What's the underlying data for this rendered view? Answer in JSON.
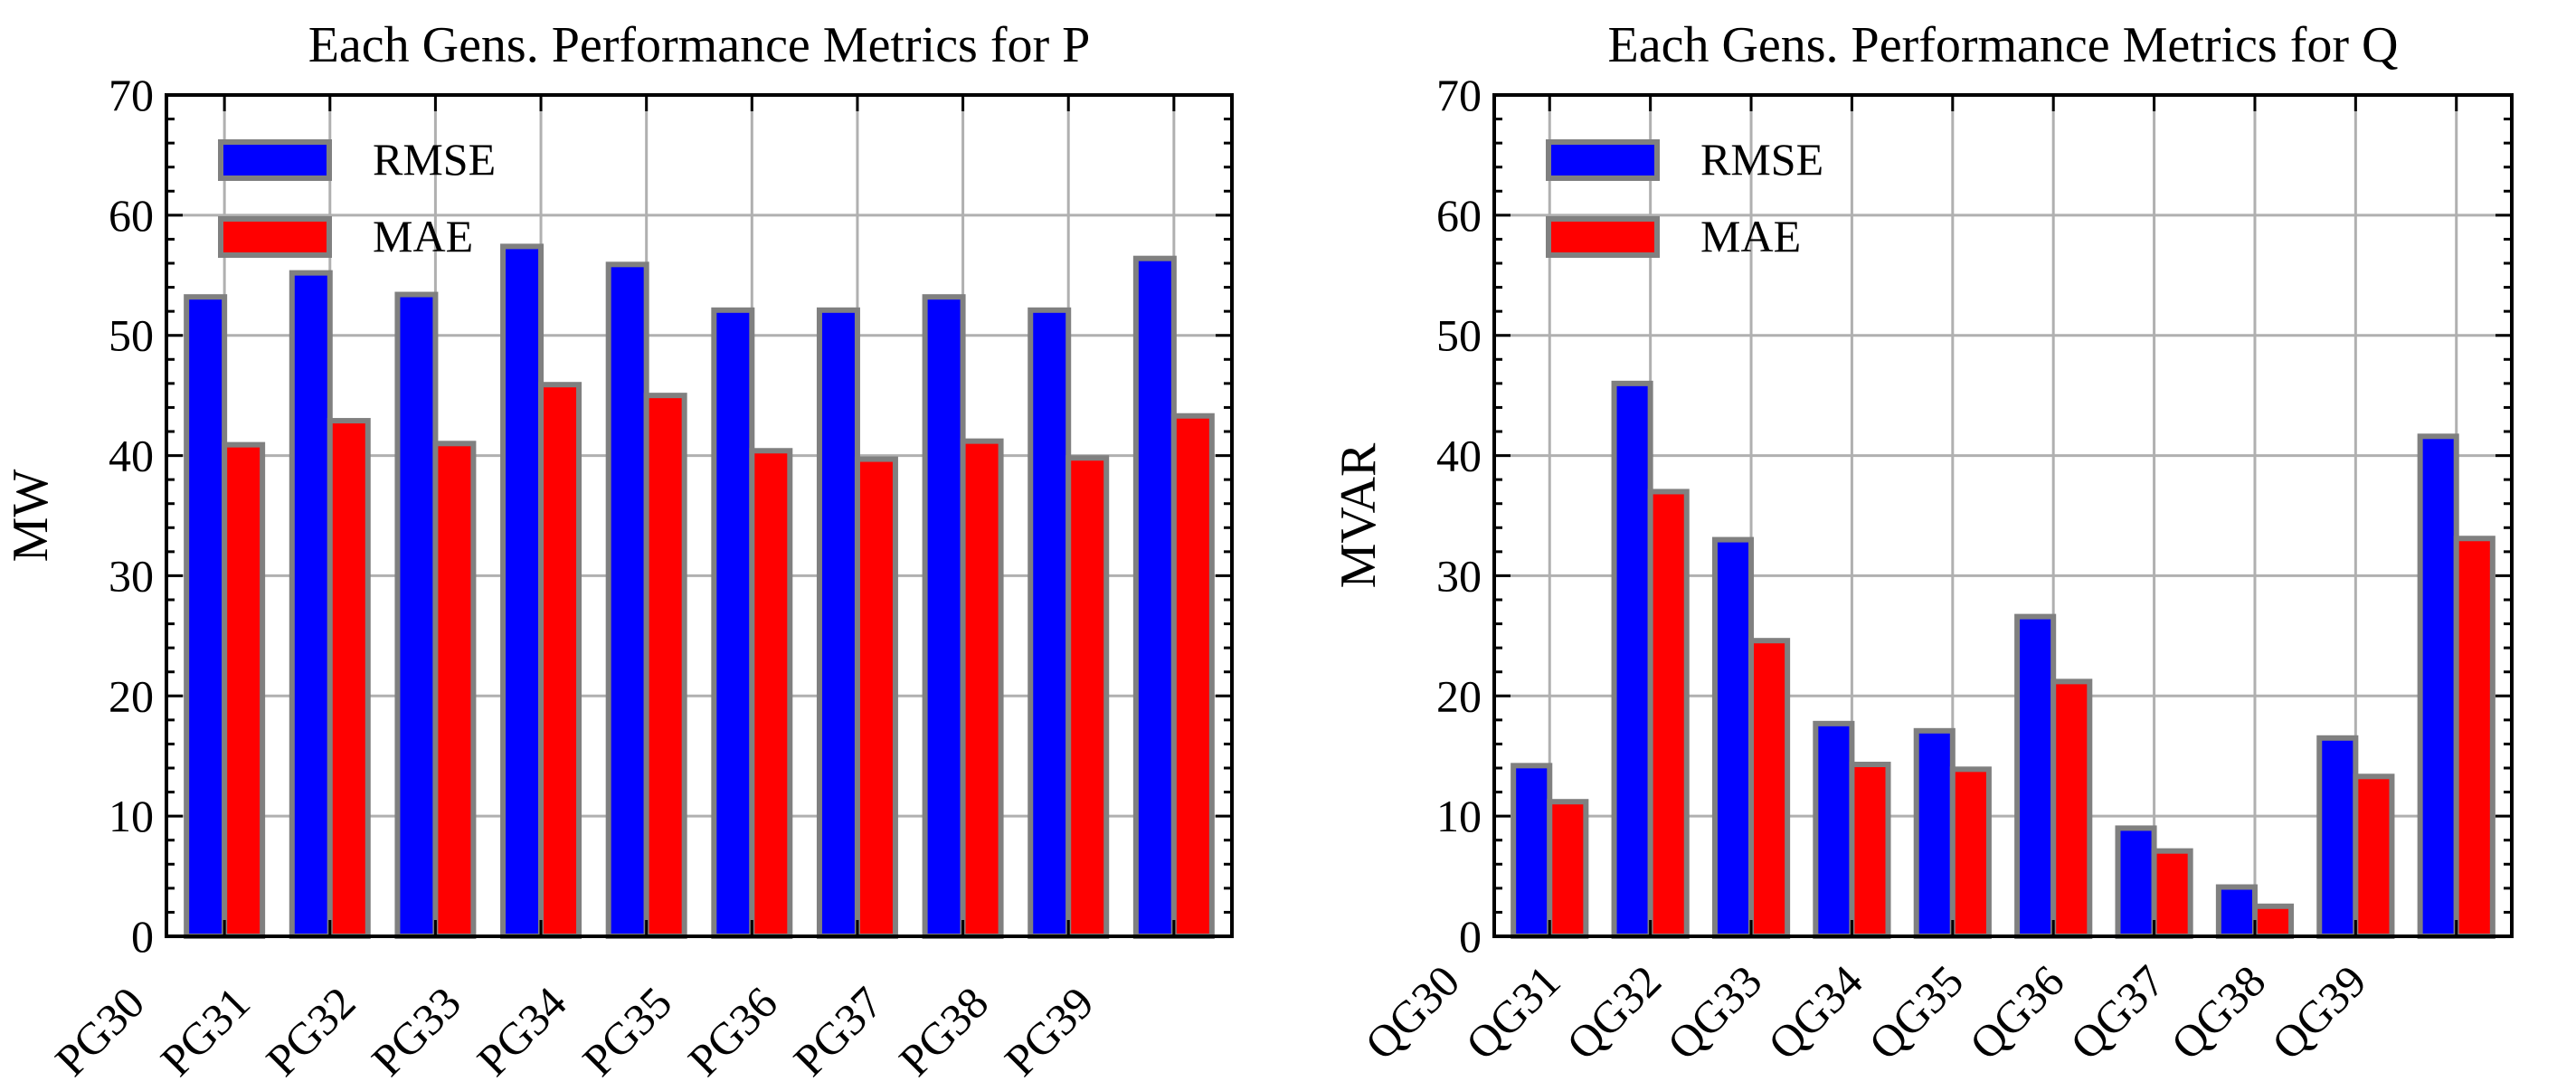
{
  "chart_data": [
    {
      "type": "bar",
      "title": "Each Gens. Performance Metrics for P",
      "xlabel": "",
      "ylabel": "MW",
      "ylim": [
        0,
        70
      ],
      "yticks": [
        0,
        10,
        20,
        30,
        40,
        50,
        60,
        70
      ],
      "grid": true,
      "legend_position": "top-left",
      "categories": [
        "PG30",
        "PG31",
        "PG32",
        "PG33",
        "PG34",
        "PG35",
        "PG36",
        "PG37",
        "PG38",
        "PG39"
      ],
      "series": [
        {
          "name": "RMSE",
          "color": "#0000ff",
          "values": [
            53.2,
            55.2,
            53.4,
            57.4,
            55.9,
            52.1,
            52.1,
            53.2,
            52.1,
            56.4
          ]
        },
        {
          "name": "MAE",
          "color": "#ff0000",
          "values": [
            40.9,
            42.9,
            41.0,
            45.9,
            45.0,
            40.4,
            39.7,
            41.2,
            39.8,
            43.3
          ]
        }
      ]
    },
    {
      "type": "bar",
      "title": "Each Gens. Performance Metrics for Q",
      "xlabel": "",
      "ylabel": "MVAR",
      "ylim": [
        0,
        70
      ],
      "yticks": [
        0,
        10,
        20,
        30,
        40,
        50,
        60,
        70
      ],
      "grid": true,
      "legend_position": "top-left",
      "categories": [
        "QG30",
        "QG31",
        "QG32",
        "QG33",
        "QG34",
        "QG35",
        "QG36",
        "QG37",
        "QG38",
        "QG39"
      ],
      "series": [
        {
          "name": "RMSE",
          "color": "#0000ff",
          "values": [
            14.2,
            46.0,
            33.0,
            17.7,
            17.1,
            26.6,
            9.0,
            4.1,
            16.5,
            41.6
          ]
        },
        {
          "name": "MAE",
          "color": "#ff0000",
          "values": [
            11.2,
            37.0,
            24.6,
            14.3,
            13.9,
            21.2,
            7.1,
            2.5,
            13.3,
            33.1
          ]
        }
      ]
    }
  ],
  "styles": {
    "bar_edge_color": "#808080",
    "grid_color": "#b0b0b0"
  }
}
